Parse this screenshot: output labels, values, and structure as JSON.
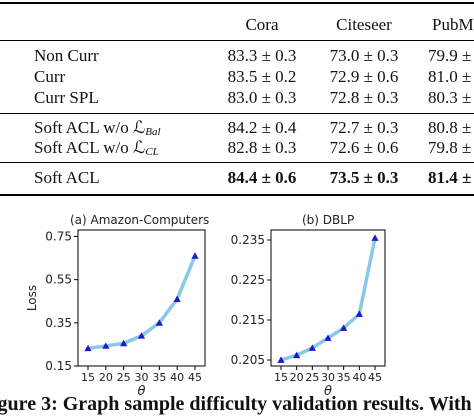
{
  "table": {
    "header": [
      "",
      "Cora",
      "Citeseer",
      "PubMe"
    ],
    "groups": [
      [
        {
          "method": "Non Curr",
          "values": [
            "83.3 ± 0.3",
            "73.0 ± 0.3",
            "79.9 ±"
          ]
        },
        {
          "method": "Curr",
          "values": [
            "83.5 ± 0.2",
            "72.9 ± 0.6",
            "81.0 ±"
          ]
        },
        {
          "method": "Curr SPL",
          "values": [
            "83.0 ± 0.3",
            "72.8 ± 0.3",
            "80.3 ±"
          ]
        }
      ],
      [
        {
          "method": "Soft ACL w/o ℒ",
          "sub": "Bal",
          "values": [
            "84.2 ± 0.4",
            "72.7 ± 0.3",
            "80.8 ±"
          ]
        },
        {
          "method": "Soft ACL w/o ℒ",
          "sub": "CL",
          "values": [
            "82.8 ± 0.3",
            "72.6 ± 0.6",
            "79.8 ±"
          ]
        }
      ],
      [
        {
          "method": "Soft ACL",
          "values": [
            "84.4 ± 0.6",
            "73.5 ± 0.3",
            "81.4 ±"
          ],
          "bold": true
        }
      ]
    ]
  },
  "chart_data": [
    {
      "type": "line",
      "title": "(a) Amazon-Computers",
      "xlabel": "θ",
      "ylabel": "Loss",
      "x": [
        15,
        20,
        25,
        30,
        35,
        40,
        45
      ],
      "xticks": [
        "15",
        "20",
        "25",
        "30",
        "35",
        "40",
        "45"
      ],
      "yticks": [
        "0.15",
        "0.35",
        "0.55",
        "0.75"
      ],
      "ylim": [
        0.15,
        0.78
      ],
      "series": [
        {
          "values": [
            0.232,
            0.243,
            0.255,
            0.29,
            0.35,
            0.46,
            0.66
          ]
        }
      ],
      "colors": {
        "line": "#88c8e8",
        "marker": "#1a1acc"
      }
    },
    {
      "type": "line",
      "title": "(b) DBLP",
      "xlabel": "θ",
      "ylabel": "",
      "x": [
        15,
        20,
        25,
        30,
        35,
        40,
        45
      ],
      "xticks": [
        "15",
        "20",
        "25",
        "30",
        "35",
        "40",
        "45"
      ],
      "yticks": [
        "0.205",
        "0.215",
        "0.225",
        "0.235"
      ],
      "ylim": [
        0.2035,
        0.2375
      ],
      "series": [
        {
          "values": [
            0.205,
            0.2062,
            0.208,
            0.2105,
            0.213,
            0.2165,
            0.2355
          ]
        }
      ],
      "colors": {
        "line": "#88c8e8",
        "marker": "#1a1acc"
      }
    }
  ],
  "caption": "igure 3: Graph sample difficulty validation results. With"
}
